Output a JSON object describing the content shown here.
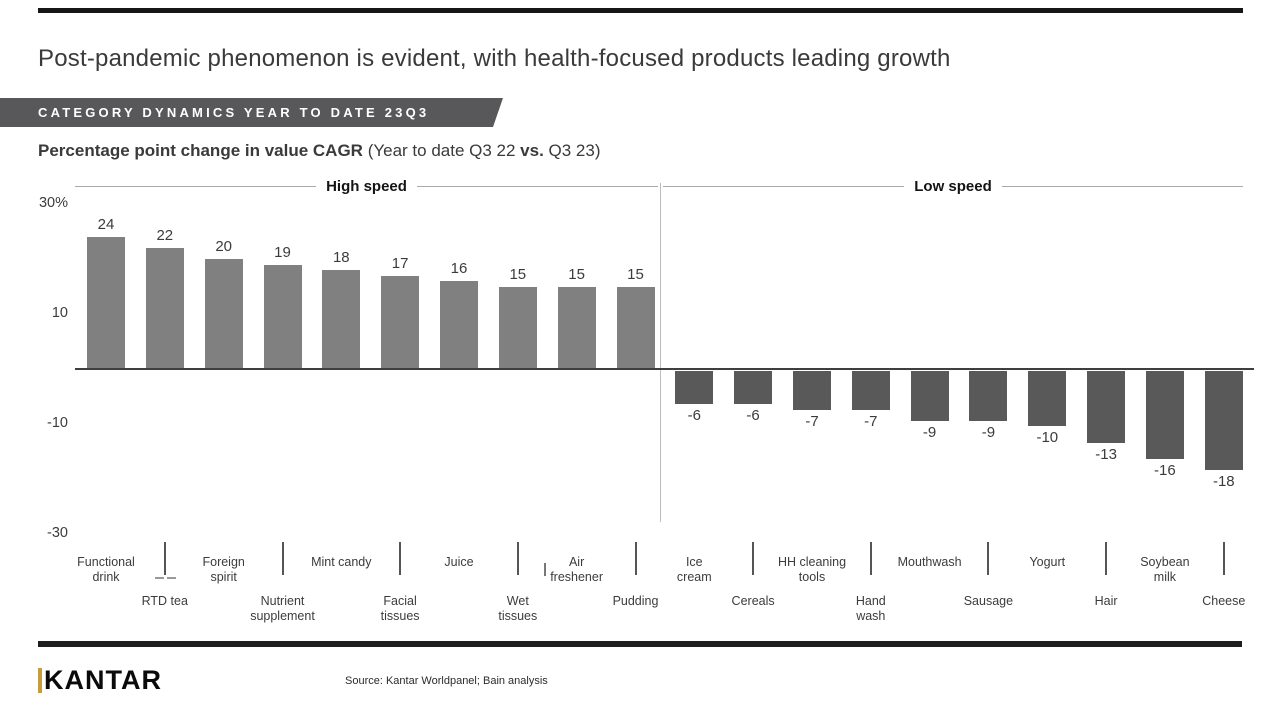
{
  "slide": {
    "title": "Post-pandemic phenomenon is evident, with health-focused products leading growth",
    "banner": "CATEGORY DYNAMICS YEAR TO DATE 23Q3",
    "subtitle": {
      "bold": "Percentage point change in value CAGR",
      "regular1": " (Year to date Q3 22 ",
      "bold2": "vs.",
      "regular2": " Q3 23)"
    }
  },
  "chart_data": {
    "type": "bar",
    "title": "Percentage point change in value CAGR (Year to date Q3 22 vs. Q3 23)",
    "ylim": [
      -33,
      31
    ],
    "grid": false,
    "yticks": [
      {
        "label": "30%",
        "value": 30
      },
      {
        "label": "10",
        "value": 10
      },
      {
        "label": "-10",
        "value": -10
      },
      {
        "label": "-30",
        "value": -30
      }
    ],
    "sections": [
      {
        "name": "High speed",
        "bar_color": "#808080",
        "categories": [
          "Functional drink",
          "RTD tea",
          "Foreign spirit",
          "Nutrient supplement",
          "Mint candy",
          "Facial tissues",
          "Juice",
          "Wet tissues",
          "Air freshener",
          "Pudding"
        ],
        "values": [
          24,
          22,
          20,
          19,
          18,
          17,
          16,
          15,
          15,
          15
        ]
      },
      {
        "name": "Low speed",
        "bar_color": "#595959",
        "categories": [
          "Ice cream",
          "Cereals",
          "HH cleaning tools",
          "Hand wash",
          "Mouthwash",
          "Sausage",
          "Yogurt",
          "Hair",
          "Soybean milk",
          "Cheese"
        ],
        "values": [
          -6,
          -6,
          -7,
          -7,
          -9,
          -9,
          -10,
          -13,
          -16,
          -18
        ]
      }
    ],
    "categories": [
      "Functional drink",
      "RTD tea",
      "Foreign spirit",
      "Nutrient supplement",
      "Mint candy",
      "Facial tissues",
      "Juice",
      "Wet tissues",
      "Air freshener",
      "Pudding",
      "Ice cream",
      "Cereals",
      "HH cleaning tools",
      "Hand wash",
      "Mouthwash",
      "Sausage",
      "Yogurt",
      "Hair",
      "Soybean milk",
      "Cheese"
    ],
    "category_label_lines": [
      [
        "Functional",
        "drink"
      ],
      [
        "RTD tea"
      ],
      [
        "Foreign",
        "spirit"
      ],
      [
        "Nutrient",
        "supplement"
      ],
      [
        "Mint candy"
      ],
      [
        "Facial",
        "tissues"
      ],
      [
        "Juice"
      ],
      [
        "Wet",
        "tissues"
      ],
      [
        "Air",
        "freshener"
      ],
      [
        "Pudding"
      ],
      [
        "Ice",
        "cream"
      ],
      [
        "Cereals"
      ],
      [
        "HH cleaning",
        "tools"
      ],
      [
        "Hand",
        "wash"
      ],
      [
        "Mouthwash"
      ],
      [
        "Sausage"
      ],
      [
        "Yogurt"
      ],
      [
        "Hair"
      ],
      [
        "Soybean",
        "milk"
      ],
      [
        "Cheese"
      ]
    ],
    "values": [
      24,
      22,
      20,
      19,
      18,
      17,
      16,
      15,
      15,
      15,
      -6,
      -6,
      -7,
      -7,
      -9,
      -9,
      -10,
      -13,
      -16,
      -18
    ],
    "legend_position": "none"
  },
  "colors": {
    "banner_bg": "#58585a",
    "bar_positive": "#808080",
    "bar_negative": "#595959",
    "rule_dark": "#1f1f1f",
    "logo_gold": "#c69d3c"
  },
  "footer": {
    "logo": "KANTAR",
    "source": "Source: Kantar Worldpanel; Bain analysis"
  }
}
